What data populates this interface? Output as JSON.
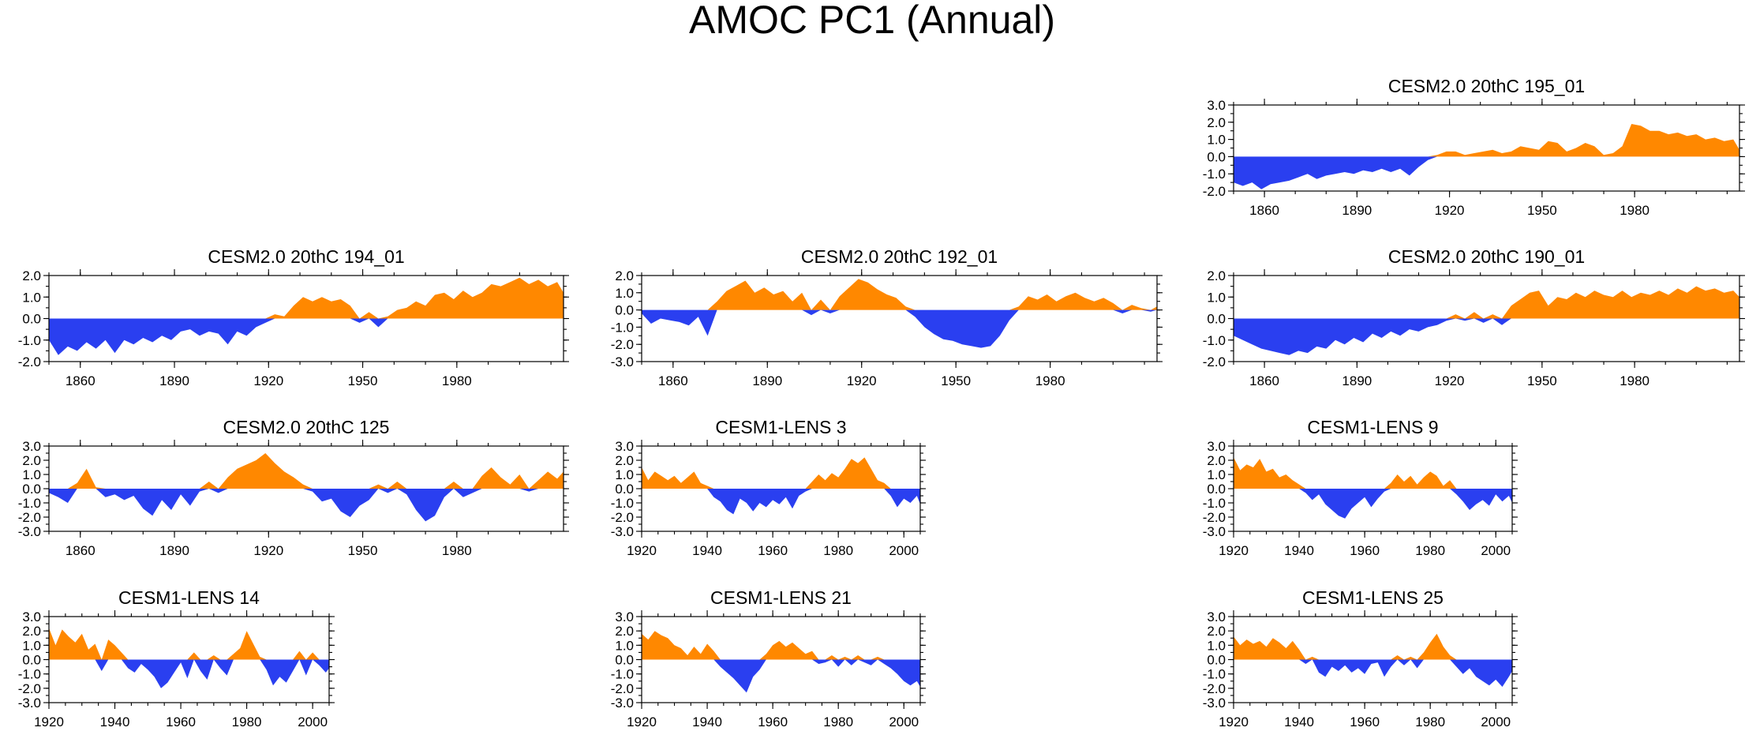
{
  "title": "AMOC PC1 (Annual)",
  "colors": {
    "positive": "#ff8800",
    "negative": "#2a3ff0",
    "frame": "#000000"
  },
  "chart_data": [
    {
      "type": "area",
      "title": "CESM2.0 20thC 195_01",
      "xlim": [
        1850,
        2014
      ],
      "ylim": [
        -2.0,
        3.0
      ],
      "yticks": [
        "3.0",
        "2.0",
        "1.0",
        "0.0",
        "-1.0",
        "-2.0"
      ],
      "xticks": [
        "1860",
        "1890",
        "1920",
        "1950",
        "1980"
      ],
      "x": [
        1850,
        1853,
        1856,
        1859,
        1862,
        1865,
        1868,
        1871,
        1874,
        1877,
        1880,
        1883,
        1886,
        1889,
        1892,
        1895,
        1898,
        1901,
        1904,
        1907,
        1910,
        1913,
        1916,
        1919,
        1922,
        1925,
        1928,
        1931,
        1934,
        1937,
        1940,
        1943,
        1946,
        1949,
        1952,
        1955,
        1958,
        1961,
        1964,
        1967,
        1970,
        1973,
        1976,
        1979,
        1982,
        1985,
        1988,
        1991,
        1994,
        1997,
        2000,
        2003,
        2006,
        2009,
        2012,
        2014
      ],
      "values": [
        -1.5,
        -1.7,
        -1.5,
        -1.9,
        -1.6,
        -1.5,
        -1.4,
        -1.2,
        -1.0,
        -1.3,
        -1.1,
        -1.0,
        -0.9,
        -1.0,
        -0.8,
        -0.9,
        -0.7,
        -0.9,
        -0.7,
        -1.1,
        -0.6,
        -0.2,
        0.1,
        0.3,
        0.3,
        0.1,
        0.2,
        0.3,
        0.4,
        0.2,
        0.3,
        0.6,
        0.5,
        0.4,
        0.9,
        0.8,
        0.3,
        0.5,
        0.8,
        0.6,
        0.1,
        0.2,
        0.6,
        1.9,
        1.8,
        1.5,
        1.5,
        1.3,
        1.4,
        1.2,
        1.3,
        1.0,
        1.1,
        0.9,
        1.0,
        0.4
      ]
    },
    {
      "type": "area",
      "title": "CESM2.0 20thC 194_01",
      "xlim": [
        1850,
        2014
      ],
      "ylim": [
        -2.0,
        2.0
      ],
      "yticks": [
        "2.0",
        "1.0",
        "0.0",
        "-1.0",
        "-2.0"
      ],
      "xticks": [
        "1860",
        "1890",
        "1920",
        "1950",
        "1980"
      ],
      "x": [
        1850,
        1853,
        1856,
        1859,
        1862,
        1865,
        1868,
        1871,
        1874,
        1877,
        1880,
        1883,
        1886,
        1889,
        1892,
        1895,
        1898,
        1901,
        1904,
        1907,
        1910,
        1913,
        1916,
        1919,
        1922,
        1925,
        1928,
        1931,
        1934,
        1937,
        1940,
        1943,
        1946,
        1949,
        1952,
        1955,
        1958,
        1961,
        1964,
        1967,
        1970,
        1973,
        1976,
        1979,
        1982,
        1985,
        1988,
        1991,
        1994,
        1997,
        2000,
        2003,
        2006,
        2009,
        2012,
        2014
      ],
      "values": [
        -1.0,
        -1.7,
        -1.3,
        -1.5,
        -1.1,
        -1.4,
        -1.0,
        -1.6,
        -1.0,
        -1.2,
        -0.9,
        -1.1,
        -0.8,
        -1.0,
        -0.6,
        -0.5,
        -0.8,
        -0.6,
        -0.7,
        -1.2,
        -0.6,
        -0.8,
        -0.4,
        -0.2,
        0.2,
        0.1,
        0.6,
        1.0,
        0.8,
        1.0,
        0.8,
        0.9,
        0.6,
        -0.2,
        0.3,
        -0.4,
        0.1,
        0.4,
        0.5,
        0.8,
        0.6,
        1.1,
        1.2,
        0.9,
        1.3,
        1.0,
        1.2,
        1.6,
        1.5,
        1.7,
        1.9,
        1.6,
        1.8,
        1.5,
        1.7,
        1.2
      ]
    },
    {
      "type": "area",
      "title": "CESM2.0 20thC 192_01",
      "xlim": [
        1850,
        2014
      ],
      "ylim": [
        -3.0,
        2.0
      ],
      "yticks": [
        "2.0",
        "1.0",
        "0.0",
        "-1.0",
        "-2.0",
        "-3.0"
      ],
      "xticks": [
        "1860",
        "1890",
        "1920",
        "1950",
        "1980"
      ],
      "x": [
        1850,
        1853,
        1856,
        1859,
        1862,
        1865,
        1868,
        1871,
        1874,
        1877,
        1880,
        1883,
        1886,
        1889,
        1892,
        1895,
        1898,
        1901,
        1904,
        1907,
        1910,
        1913,
        1916,
        1919,
        1922,
        1925,
        1928,
        1931,
        1934,
        1937,
        1940,
        1943,
        1946,
        1949,
        1952,
        1955,
        1958,
        1961,
        1964,
        1967,
        1970,
        1973,
        1976,
        1979,
        1982,
        1985,
        1988,
        1991,
        1994,
        1997,
        2000,
        2003,
        2006,
        2009,
        2012,
        2014
      ],
      "values": [
        -0.2,
        -0.8,
        -0.5,
        -0.6,
        -0.7,
        -0.9,
        -0.4,
        -1.5,
        0.5,
        1.1,
        1.4,
        1.7,
        1.0,
        1.3,
        0.9,
        1.1,
        0.5,
        1.0,
        -0.3,
        0.6,
        -0.2,
        0.8,
        1.3,
        1.8,
        1.6,
        1.2,
        0.9,
        0.7,
        0.2,
        -0.4,
        -1.0,
        -1.4,
        -1.7,
        -1.8,
        -2.0,
        -2.1,
        -2.2,
        -2.1,
        -1.5,
        -0.6,
        0.2,
        0.8,
        0.6,
        0.9,
        0.5,
        0.8,
        1.0,
        0.7,
        0.5,
        0.7,
        0.4,
        -0.2,
        0.3,
        0.1,
        -0.1,
        0.2
      ]
    },
    {
      "type": "area",
      "title": "CESM2.0 20thC 190_01",
      "xlim": [
        1850,
        2014
      ],
      "ylim": [
        -2.0,
        2.0
      ],
      "yticks": [
        "2.0",
        "1.0",
        "0.0",
        "-1.0",
        "-2.0"
      ],
      "xticks": [
        "1860",
        "1890",
        "1920",
        "1950",
        "1980"
      ],
      "x": [
        1850,
        1853,
        1856,
        1859,
        1862,
        1865,
        1868,
        1871,
        1874,
        1877,
        1880,
        1883,
        1886,
        1889,
        1892,
        1895,
        1898,
        1901,
        1904,
        1907,
        1910,
        1913,
        1916,
        1919,
        1922,
        1925,
        1928,
        1931,
        1934,
        1937,
        1940,
        1943,
        1946,
        1949,
        1952,
        1955,
        1958,
        1961,
        1964,
        1967,
        1970,
        1973,
        1976,
        1979,
        1982,
        1985,
        1988,
        1991,
        1994,
        1997,
        2000,
        2003,
        2006,
        2009,
        2012,
        2014
      ],
      "values": [
        -0.8,
        -1.0,
        -1.2,
        -1.4,
        -1.5,
        -1.6,
        -1.7,
        -1.5,
        -1.6,
        -1.3,
        -1.4,
        -1.0,
        -1.2,
        -0.9,
        -1.1,
        -0.7,
        -0.9,
        -0.6,
        -0.8,
        -0.5,
        -0.6,
        -0.4,
        -0.3,
        -0.1,
        0.2,
        -0.1,
        0.3,
        -0.2,
        0.2,
        -0.3,
        0.6,
        0.9,
        1.2,
        1.3,
        0.6,
        1.0,
        0.9,
        1.2,
        1.0,
        1.3,
        1.1,
        1.0,
        1.3,
        1.0,
        1.2,
        1.1,
        1.3,
        1.1,
        1.4,
        1.2,
        1.5,
        1.3,
        1.4,
        1.2,
        1.3,
        1.0
      ]
    },
    {
      "type": "area",
      "title": "CESM2.0 20thC 125",
      "xlim": [
        1850,
        2014
      ],
      "ylim": [
        -3.0,
        3.0
      ],
      "yticks": [
        "3.0",
        "2.0",
        "1.0",
        "0.0",
        "-1.0",
        "-2.0",
        "-3.0"
      ],
      "xticks": [
        "1860",
        "1890",
        "1920",
        "1950",
        "1980"
      ],
      "x": [
        1850,
        1853,
        1856,
        1859,
        1862,
        1865,
        1868,
        1871,
        1874,
        1877,
        1880,
        1883,
        1886,
        1889,
        1892,
        1895,
        1898,
        1901,
        1904,
        1907,
        1910,
        1913,
        1916,
        1919,
        1922,
        1925,
        1928,
        1931,
        1934,
        1937,
        1940,
        1943,
        1946,
        1949,
        1952,
        1955,
        1958,
        1961,
        1964,
        1967,
        1970,
        1973,
        1976,
        1979,
        1982,
        1985,
        1988,
        1991,
        1994,
        1997,
        2000,
        2003,
        2006,
        2009,
        2012,
        2014
      ],
      "values": [
        -0.3,
        -0.6,
        -1.0,
        0.4,
        1.4,
        0.1,
        -0.6,
        -0.4,
        -0.8,
        -0.5,
        -1.4,
        -1.9,
        -0.8,
        -1.5,
        -0.4,
        -1.2,
        -0.2,
        0.5,
        -0.3,
        0.8,
        1.4,
        1.7,
        2.0,
        2.5,
        1.8,
        1.2,
        0.8,
        0.3,
        -0.2,
        -0.9,
        -0.7,
        -1.6,
        -2.0,
        -1.2,
        -0.8,
        0.3,
        -0.3,
        0.5,
        -0.4,
        -1.5,
        -2.3,
        -1.9,
        -0.6,
        0.5,
        -0.6,
        -0.3,
        0.9,
        1.5,
        0.8,
        0.3,
        1.0,
        -0.2,
        0.6,
        1.2,
        0.7,
        1.2
      ]
    },
    {
      "type": "area",
      "title": "CESM1-LENS 3",
      "xlim": [
        1920,
        2005
      ],
      "ylim": [
        -3.0,
        3.0
      ],
      "yticks": [
        "3.0",
        "2.0",
        "1.0",
        "0.0",
        "-1.0",
        "-2.0",
        "-3.0"
      ],
      "xticks": [
        "1920",
        "1940",
        "1960",
        "1980",
        "2000"
      ],
      "x": [
        1920,
        1922,
        1924,
        1926,
        1928,
        1930,
        1932,
        1934,
        1936,
        1938,
        1940,
        1942,
        1944,
        1946,
        1948,
        1950,
        1952,
        1954,
        1956,
        1958,
        1960,
        1962,
        1964,
        1966,
        1968,
        1970,
        1972,
        1974,
        1976,
        1978,
        1980,
        1982,
        1984,
        1986,
        1988,
        1990,
        1992,
        1994,
        1996,
        1998,
        2000,
        2002,
        2004,
        2005
      ],
      "values": [
        1.5,
        0.6,
        1.2,
        0.9,
        0.6,
        0.9,
        0.4,
        0.8,
        1.2,
        0.4,
        0.2,
        -0.6,
        -0.9,
        -1.5,
        -1.8,
        -0.7,
        -1.0,
        -1.6,
        -1.0,
        -1.3,
        -0.8,
        -1.1,
        -0.6,
        -1.4,
        -0.5,
        -0.2,
        0.5,
        1.0,
        0.6,
        1.1,
        0.8,
        1.4,
        2.1,
        1.8,
        2.2,
        1.4,
        0.6,
        0.4,
        -0.5,
        -1.3,
        -0.7,
        -1.0,
        -0.5,
        -1.1
      ]
    },
    {
      "type": "area",
      "title": "CESM1-LENS 9",
      "xlim": [
        1920,
        2005
      ],
      "ylim": [
        -3.0,
        3.0
      ],
      "yticks": [
        "3.0",
        "2.0",
        "1.0",
        "0.0",
        "-1.0",
        "-2.0",
        "-3.0"
      ],
      "xticks": [
        "1920",
        "1940",
        "1960",
        "1980",
        "2000"
      ],
      "x": [
        1920,
        1922,
        1924,
        1926,
        1928,
        1930,
        1932,
        1934,
        1936,
        1938,
        1940,
        1942,
        1944,
        1946,
        1948,
        1950,
        1952,
        1954,
        1956,
        1958,
        1960,
        1962,
        1964,
        1966,
        1968,
        1970,
        1972,
        1974,
        1976,
        1978,
        1980,
        1982,
        1984,
        1986,
        1988,
        1990,
        1992,
        1994,
        1996,
        1998,
        2000,
        2002,
        2004,
        2005
      ],
      "values": [
        2.2,
        1.3,
        1.7,
        1.5,
        2.1,
        1.2,
        1.4,
        0.8,
        1.0,
        0.6,
        0.3,
        -0.3,
        -0.8,
        -0.4,
        -1.1,
        -1.5,
        -1.9,
        -2.1,
        -1.4,
        -1.0,
        -0.6,
        -1.3,
        -0.7,
        -0.2,
        0.4,
        1.0,
        0.5,
        0.9,
        0.3,
        0.8,
        1.2,
        0.9,
        0.2,
        0.6,
        -0.4,
        -0.9,
        -1.5,
        -1.1,
        -0.8,
        -1.2,
        -0.4,
        -0.9,
        -0.5,
        -1.0
      ]
    },
    {
      "type": "area",
      "title": "CESM1-LENS 14",
      "xlim": [
        1920,
        2005
      ],
      "ylim": [
        -3.0,
        3.0
      ],
      "yticks": [
        "3.0",
        "2.0",
        "1.0",
        "0.0",
        "-1.0",
        "-2.0",
        "-3.0"
      ],
      "xticks": [
        "1920",
        "1940",
        "1960",
        "1980",
        "2000"
      ],
      "x": [
        1920,
        1922,
        1924,
        1926,
        1928,
        1930,
        1932,
        1934,
        1936,
        1938,
        1940,
        1942,
        1944,
        1946,
        1948,
        1950,
        1952,
        1954,
        1956,
        1958,
        1960,
        1962,
        1964,
        1966,
        1968,
        1970,
        1972,
        1974,
        1976,
        1978,
        1980,
        1982,
        1984,
        1986,
        1988,
        1990,
        1992,
        1994,
        1996,
        1998,
        2000,
        2002,
        2004,
        2005
      ],
      "values": [
        2.2,
        1.0,
        2.1,
        1.6,
        1.2,
        1.8,
        0.7,
        1.1,
        -0.8,
        1.4,
        1.0,
        0.5,
        -0.6,
        -0.9,
        -0.3,
        -0.7,
        -1.2,
        -2.0,
        -1.6,
        -0.9,
        -0.2,
        -1.3,
        0.5,
        -0.8,
        -1.4,
        0.3,
        -0.6,
        -1.1,
        0.4,
        0.8,
        2.0,
        1.1,
        0.2,
        -0.7,
        -1.8,
        -1.2,
        -1.6,
        -0.8,
        0.6,
        -1.1,
        0.5,
        -0.4,
        -0.9,
        -0.6
      ]
    },
    {
      "type": "area",
      "title": "CESM1-LENS 21",
      "xlim": [
        1920,
        2005
      ],
      "ylim": [
        -3.0,
        3.0
      ],
      "yticks": [
        "3.0",
        "2.0",
        "1.0",
        "0.0",
        "-1.0",
        "-2.0",
        "-3.0"
      ],
      "xticks": [
        "1920",
        "1940",
        "1960",
        "1980",
        "2000"
      ],
      "x": [
        1920,
        1922,
        1924,
        1926,
        1928,
        1930,
        1932,
        1934,
        1936,
        1938,
        1940,
        1942,
        1944,
        1946,
        1948,
        1950,
        1952,
        1954,
        1956,
        1958,
        1960,
        1962,
        1964,
        1966,
        1968,
        1970,
        1972,
        1974,
        1976,
        1978,
        1980,
        1982,
        1984,
        1986,
        1988,
        1990,
        1992,
        1994,
        1996,
        1998,
        2000,
        2002,
        2004,
        2005
      ],
      "values": [
        1.8,
        1.4,
        2.0,
        1.7,
        1.5,
        1.0,
        0.8,
        0.3,
        0.9,
        0.4,
        1.1,
        0.6,
        -0.5,
        -0.9,
        -1.3,
        -1.8,
        -2.3,
        -1.2,
        -0.7,
        0.4,
        1.0,
        1.3,
        0.9,
        1.2,
        0.8,
        0.4,
        0.6,
        -0.3,
        -0.2,
        0.3,
        -0.5,
        0.2,
        -0.4,
        0.3,
        -0.2,
        -0.4,
        0.2,
        -0.3,
        -0.6,
        -1.0,
        -1.5,
        -1.8,
        -1.5,
        -1.9
      ]
    },
    {
      "type": "area",
      "title": "CESM1-LENS 25",
      "xlim": [
        1920,
        2005
      ],
      "ylim": [
        -3.0,
        3.0
      ],
      "yticks": [
        "3.0",
        "2.0",
        "1.0",
        "0.0",
        "-1.0",
        "-2.0",
        "-3.0"
      ],
      "xticks": [
        "1920",
        "1940",
        "1960",
        "1980",
        "2000"
      ],
      "x": [
        1920,
        1922,
        1924,
        1926,
        1928,
        1930,
        1932,
        1934,
        1936,
        1938,
        1940,
        1942,
        1944,
        1946,
        1948,
        1950,
        1952,
        1954,
        1956,
        1958,
        1960,
        1962,
        1964,
        1966,
        1968,
        1970,
        1972,
        1974,
        1976,
        1978,
        1980,
        1982,
        1984,
        1986,
        1988,
        1990,
        1992,
        1994,
        1996,
        1998,
        2000,
        2002,
        2004,
        2005
      ],
      "values": [
        1.6,
        1.0,
        1.4,
        1.1,
        1.3,
        0.9,
        1.5,
        1.2,
        0.8,
        1.3,
        0.7,
        -0.3,
        0.2,
        -0.9,
        -1.2,
        -0.5,
        -0.8,
        -0.4,
        -0.9,
        -0.6,
        -1.0,
        -0.3,
        -0.2,
        -1.2,
        -0.5,
        0.3,
        -0.4,
        0.2,
        -0.6,
        0.5,
        1.2,
        1.8,
        0.9,
        0.3,
        -0.5,
        -1.0,
        -0.6,
        -1.2,
        -1.5,
        -1.8,
        -1.4,
        -1.9,
        -1.2,
        -0.8
      ]
    }
  ]
}
